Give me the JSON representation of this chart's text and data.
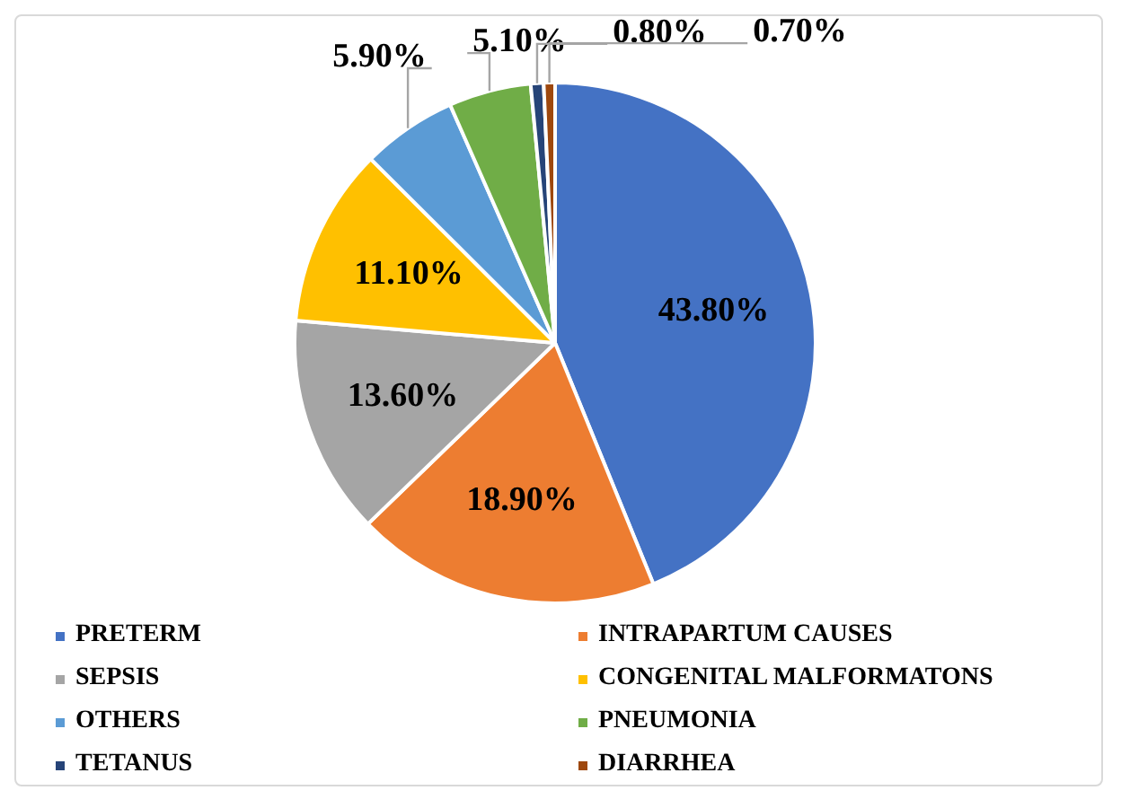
{
  "chart_data": {
    "type": "pie",
    "categories": [
      "PRETERM",
      "INTRAPARTUM CAUSES",
      "SEPSIS",
      "CONGENITAL MALFORMATONS",
      "OTHERS",
      "PNEUMONIA",
      "TETANUS",
      "DIARRHEA"
    ],
    "values": [
      43.8,
      18.9,
      13.6,
      11.1,
      5.9,
      5.1,
      0.8,
      0.7
    ],
    "colors": [
      "#4472c4",
      "#ed7d31",
      "#a5a5a5",
      "#ffc000",
      "#5b9bd5",
      "#70ad47",
      "#264478",
      "#9e480e"
    ],
    "value_labels": [
      "43.80%",
      "18.90%",
      "13.60%",
      "11.10%",
      "5.90%",
      "5.10%",
      "0.80%",
      "0.70%"
    ],
    "legend": "bottom"
  }
}
